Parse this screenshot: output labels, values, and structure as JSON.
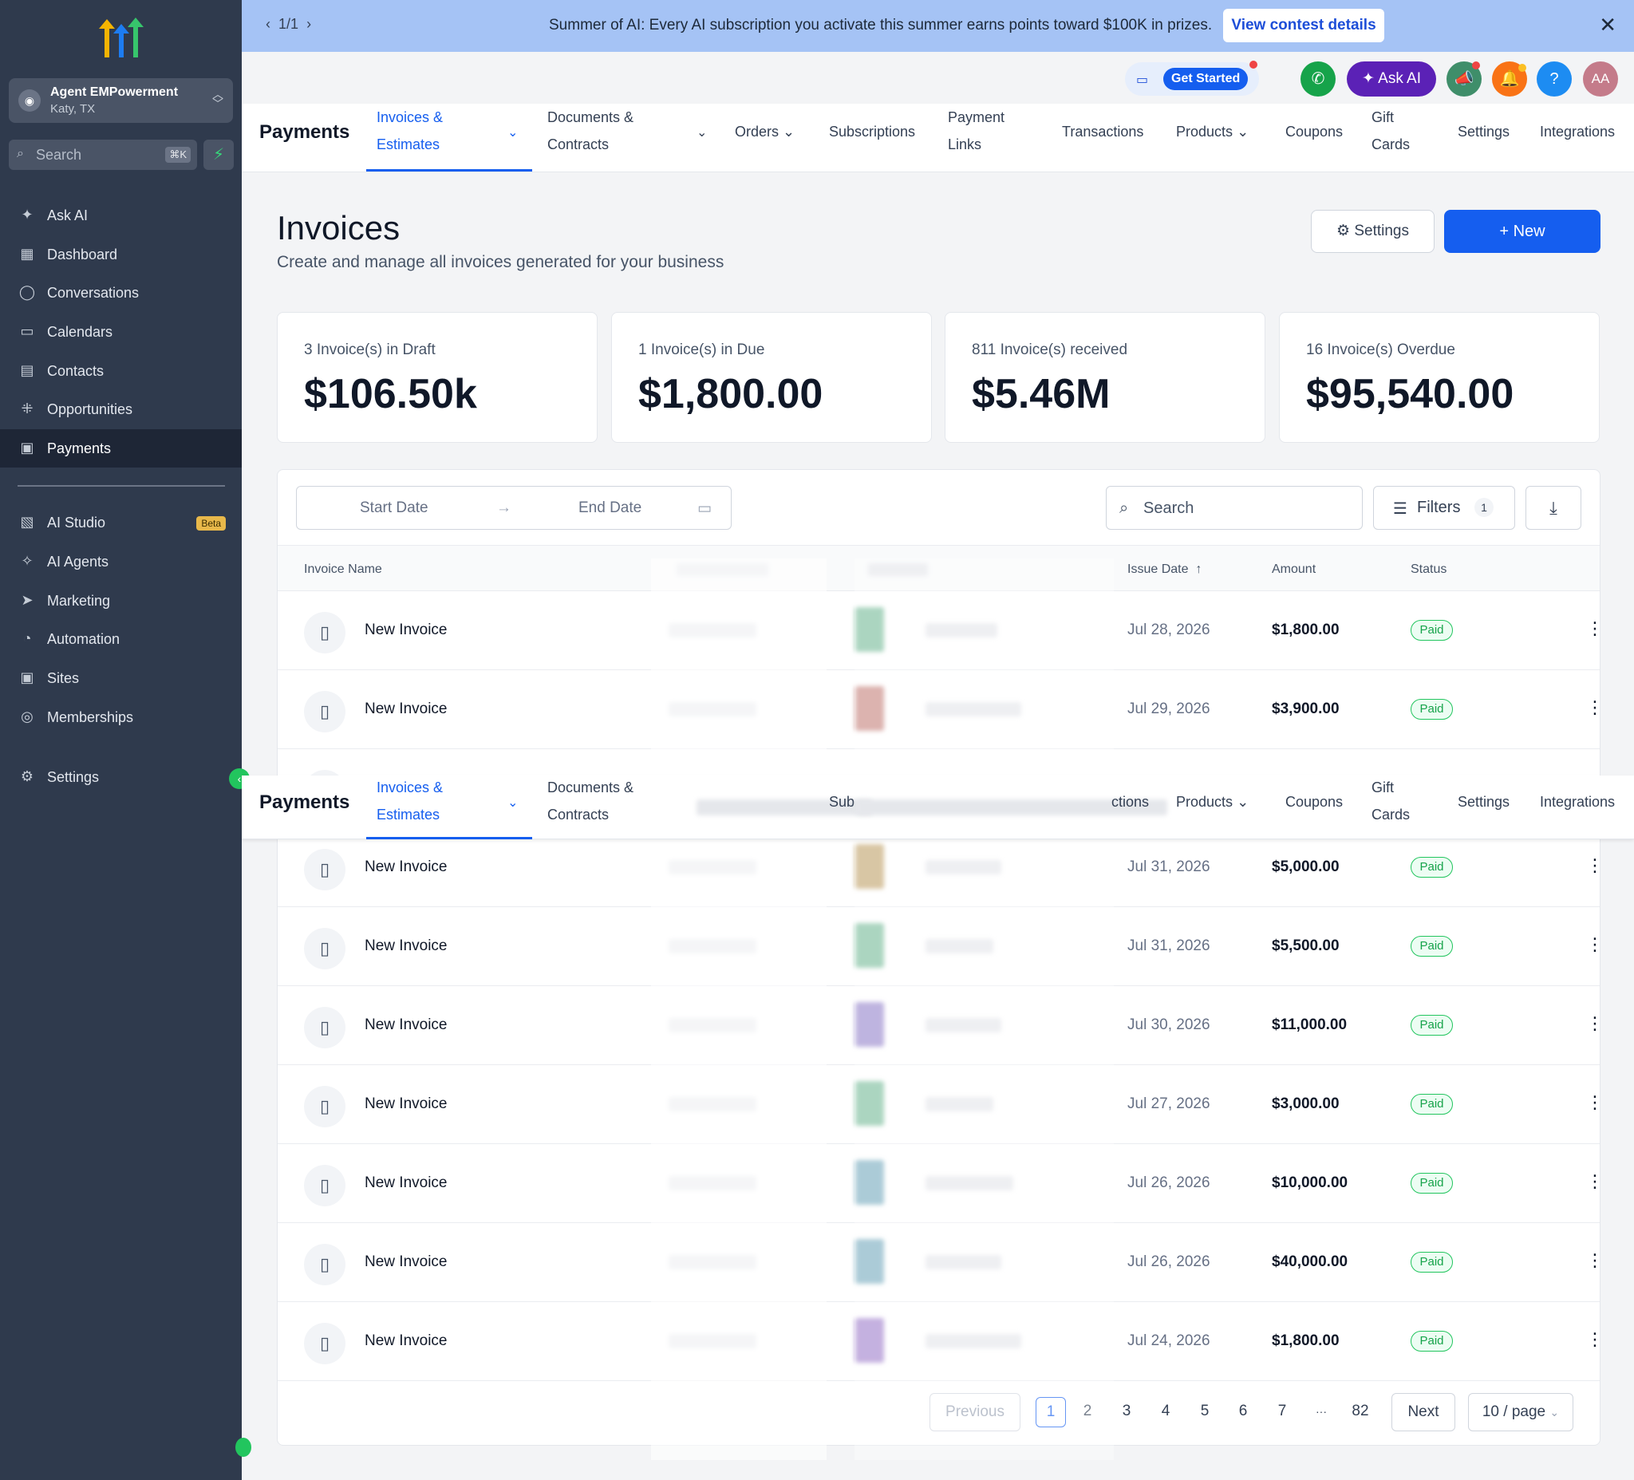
{
  "colors": {
    "sidebar": "#2f3a4d",
    "primary": "#155eef",
    "banner": "#a5c3f5",
    "paid": "#16a34a"
  },
  "sidebar": {
    "account_name": "Agent EMPowerment",
    "account_location": "Katy, TX",
    "account_icon": "user-icon",
    "search_placeholder": "Search",
    "search_shortcut": "⌘K",
    "items": [
      {
        "label": "Ask AI",
        "icon": "sparkle-icon"
      },
      {
        "label": "Dashboard",
        "icon": "grid-icon"
      },
      {
        "label": "Conversations",
        "icon": "chat-icon"
      },
      {
        "label": "Calendars",
        "icon": "calendar-icon"
      },
      {
        "label": "Contacts",
        "icon": "contacts-icon"
      },
      {
        "label": "Opportunities",
        "icon": "funnel-icon"
      },
      {
        "label": "Payments",
        "icon": "receipt-icon",
        "active": true
      }
    ],
    "items2": [
      {
        "label": "AI Studio",
        "icon": "studio-icon",
        "badge": "Beta"
      },
      {
        "label": "AI Agents",
        "icon": "agents-icon"
      },
      {
        "label": "Marketing",
        "icon": "send-icon"
      },
      {
        "label": "Automation",
        "icon": "automation-icon"
      },
      {
        "label": "Sites",
        "icon": "sites-icon"
      },
      {
        "label": "Memberships",
        "icon": "badge-icon"
      }
    ],
    "settings_label": "Settings"
  },
  "banner": {
    "pager": "1/1",
    "message": "Summer of AI: Every AI subscription you activate this summer earns points toward $100K in prizes.",
    "button": "View contest details"
  },
  "header": {
    "get_started": "Get Started",
    "ask_ai": "Ask AI",
    "help": "?",
    "avatar": "AA"
  },
  "tabs": {
    "title": "Payments",
    "invoices_l1": "Invoices &",
    "invoices_l2": "Estimates",
    "documents_l1": "Documents &",
    "documents_l2": "Contracts",
    "orders": "Orders",
    "subscriptions": "Subscriptions",
    "paylinks_l1": "Payment",
    "paylinks_l2": "Links",
    "transactions": "Transactions",
    "products": "Products",
    "coupons": "Coupons",
    "gift_l1": "Gift",
    "gift_l2": "Cards",
    "settings": "Settings",
    "integrations": "Integrations",
    "dup_sub": "Sub",
    "dup_transactions": "ctions"
  },
  "page": {
    "title": "Invoices",
    "subtitle": "Create and manage all invoices generated for your business",
    "settings_btn": "Settings",
    "new_btn": "+ New"
  },
  "stats": [
    {
      "label": "3 Invoice(s) in Draft",
      "value": "$106.50k"
    },
    {
      "label": "1 Invoice(s) in Due",
      "value": "$1,800.00"
    },
    {
      "label": "811 Invoice(s) received",
      "value": "$5.46M"
    },
    {
      "label": "16 Invoice(s) Overdue",
      "value": "$95,540.00"
    }
  ],
  "filters": {
    "start_date": "Start Date",
    "end_date": "End Date",
    "search": "Search",
    "filters_label": "Filters",
    "filters_count": "1"
  },
  "table": {
    "headers": {
      "name": "Invoice Name",
      "issue_date": "Issue Date",
      "amount": "Amount",
      "status": "Status"
    },
    "rows": [
      {
        "name": "New Invoice",
        "date": "Jul 28, 2026",
        "amount": "$1,800.00",
        "status": "Paid"
      },
      {
        "name": "New Invoice",
        "date": "Jul 29, 2026",
        "amount": "$3,900.00",
        "status": "Paid"
      },
      {
        "name": "New Invoice",
        "date": "Jul 31, 2026",
        "amount": "$5,000.00",
        "status": "Paid"
      },
      {
        "name": "New Invoice",
        "date": "Jul 31, 2026",
        "amount": "$5,500.00",
        "status": "Paid"
      },
      {
        "name": "New Invoice",
        "date": "Jul 30, 2026",
        "amount": "$11,000.00",
        "status": "Paid"
      },
      {
        "name": "New Invoice",
        "date": "Jul 27, 2026",
        "amount": "$3,000.00",
        "status": "Paid"
      },
      {
        "name": "New Invoice",
        "date": "Jul 26, 2026",
        "amount": "$10,000.00",
        "status": "Paid"
      },
      {
        "name": "New Invoice",
        "date": "Jul 26, 2026",
        "amount": "$40,000.00",
        "status": "Paid"
      },
      {
        "name": "New Invoice",
        "date": "Jul 24, 2026",
        "amount": "$1,800.00",
        "status": "Paid"
      }
    ]
  },
  "pagination": {
    "previous": "Previous",
    "pages": [
      "1",
      "2",
      "3",
      "4",
      "5",
      "6",
      "7",
      "···",
      "82"
    ],
    "current_page": "1",
    "next": "Next",
    "per_page": "10 / page"
  }
}
